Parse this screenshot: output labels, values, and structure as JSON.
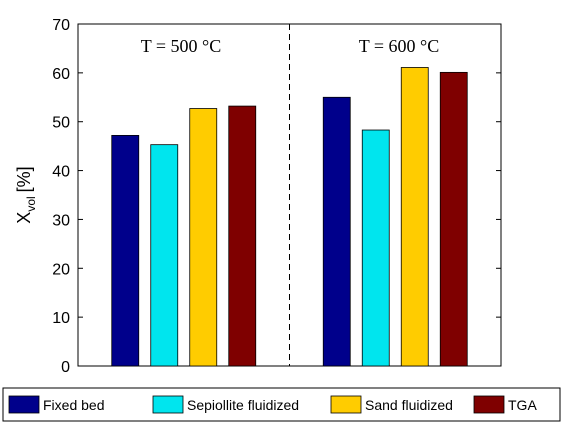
{
  "chart_data": {
    "type": "bar",
    "ylabel_main": "X",
    "ylabel_sub": "vol",
    "ylabel_unit": "[%]",
    "ylim": [
      0,
      70
    ],
    "yticks": [
      0,
      10,
      20,
      30,
      40,
      50,
      60,
      70
    ],
    "groups": [
      "T = 500 °C",
      "T = 600 °C"
    ],
    "series": [
      {
        "name": "Fixed bed",
        "color": "#00008b",
        "values": [
          47.2,
          55.0
        ]
      },
      {
        "name": "Sepiollite fluidized",
        "color": "#00e5ee",
        "values": [
          45.3,
          48.3
        ]
      },
      {
        "name": "Sand fluidized",
        "color": "#ffcc00",
        "values": [
          52.7,
          61.1
        ]
      },
      {
        "name": "TGA",
        "color": "#7f0000",
        "values": [
          53.2,
          60.1
        ]
      }
    ],
    "grid": false,
    "legend_position": "bottom",
    "group_separator": "dashed"
  }
}
